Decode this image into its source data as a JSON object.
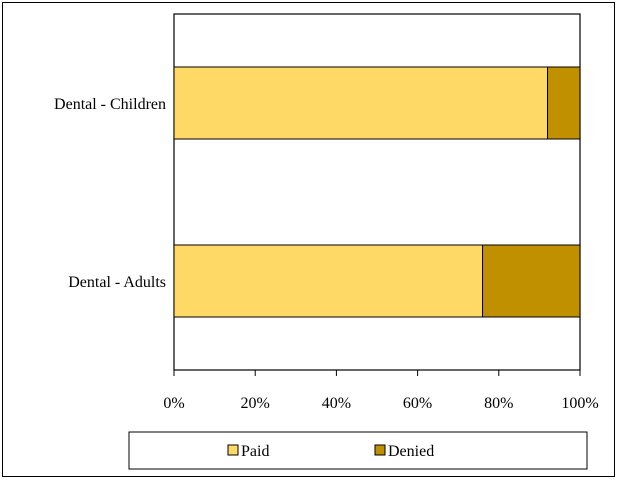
{
  "chart_data": {
    "type": "bar",
    "orientation": "horizontal",
    "stacked": "percent",
    "categories": [
      "Dental - Children",
      "Dental - Adults"
    ],
    "series": [
      {
        "name": "Paid",
        "values": [
          92,
          76
        ],
        "color": "#FFD966"
      },
      {
        "name": "Denied",
        "values": [
          8,
          24
        ],
        "color": "#C09000"
      }
    ],
    "x_ticks": [
      "0%",
      "20%",
      "40%",
      "60%",
      "80%",
      "100%"
    ],
    "xlim": [
      0,
      100
    ],
    "title": "",
    "xlabel": "",
    "ylabel": "",
    "grid": false,
    "legend_position": "bottom"
  }
}
